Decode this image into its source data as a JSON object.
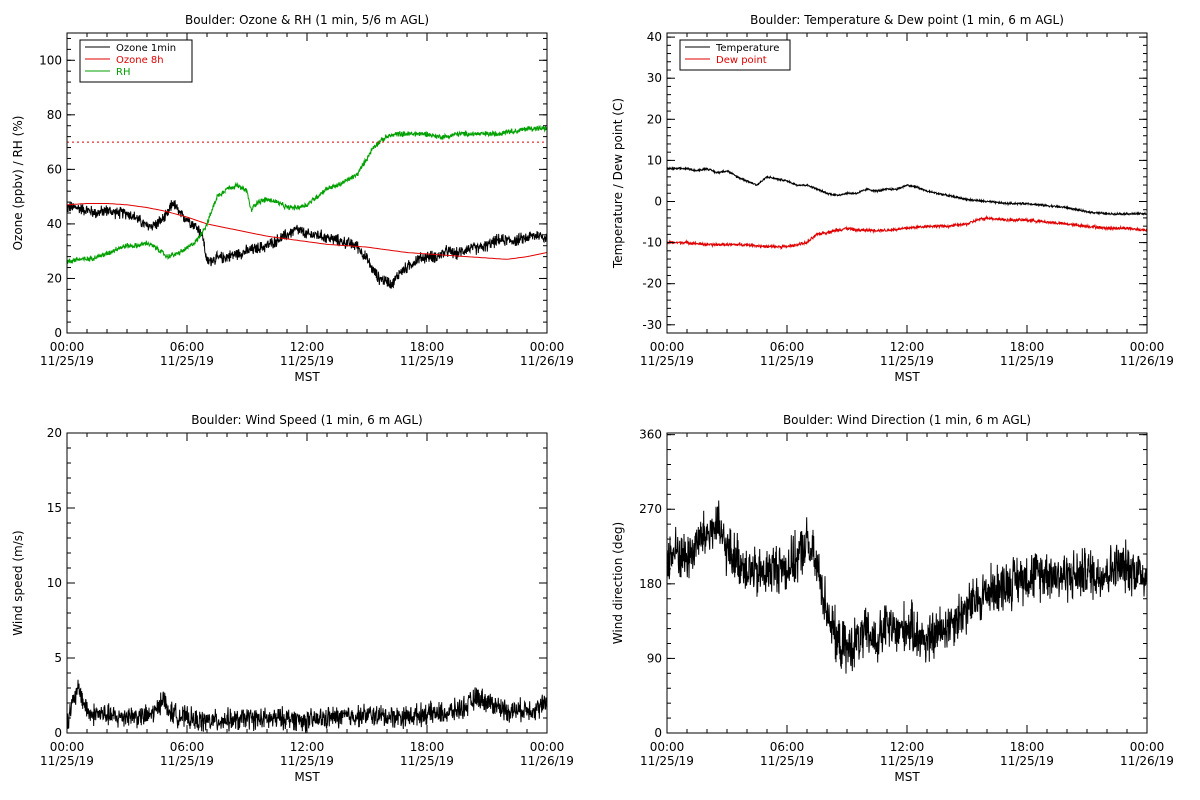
{
  "x_axis": {
    "label": "MST",
    "ticks": [
      {
        "time": "00:00",
        "date": "11/25/19"
      },
      {
        "time": "06:00",
        "date": "11/25/19"
      },
      {
        "time": "12:00",
        "date": "11/25/19"
      },
      {
        "time": "18:00",
        "date": "11/25/19"
      },
      {
        "time": "00:00",
        "date": "11/26/19"
      }
    ]
  },
  "chart_data": [
    {
      "type": "line",
      "title": "Boulder: Ozone & RH (1 min, 5/6 m AGL)",
      "xlabel": "MST",
      "ylabel": "Ozone (ppbv) / RH (%)",
      "x_range_hours": [
        0,
        24
      ],
      "ylim": [
        0,
        110
      ],
      "yticks": [
        0,
        20,
        40,
        60,
        80,
        100
      ],
      "grid": false,
      "legend": "top-left",
      "series": [
        {
          "name": "Ozone 1min",
          "color": "#000000",
          "noise": 1.8,
          "x": [
            0,
            0.5,
            1,
            1.5,
            2,
            2.5,
            3,
            3.5,
            4,
            4.5,
            5,
            5.3,
            5.7,
            6,
            6.3,
            6.6,
            6.8,
            7,
            7.3,
            8,
            9,
            10,
            10.5,
            11,
            11.5,
            12,
            12.5,
            13,
            13.5,
            14,
            14.5,
            15,
            15.3,
            15.6,
            16,
            16.3,
            16.6,
            17,
            17.5,
            18,
            18.5,
            19,
            19.5,
            20,
            20.5,
            21,
            21.5,
            22,
            22.5,
            23,
            23.5,
            24
          ],
          "y": [
            46,
            46,
            45,
            44,
            45,
            44,
            44,
            42,
            39,
            40,
            43,
            48,
            43,
            42,
            40,
            38,
            35,
            26,
            27,
            28,
            30,
            32,
            34,
            36,
            38,
            36,
            36,
            35,
            34,
            33,
            32,
            27,
            23,
            20,
            19,
            18,
            22,
            24,
            27,
            28,
            28,
            30,
            29,
            31,
            31,
            32,
            34,
            34,
            34,
            35,
            36,
            35
          ]
        },
        {
          "name": "Ozone 8h",
          "color": "#e00000",
          "noise": 0,
          "x": [
            0,
            1,
            2,
            3,
            4,
            5,
            6,
            7,
            8,
            9,
            10,
            11,
            12,
            13,
            14,
            15,
            16,
            17,
            18,
            19,
            20,
            21,
            22,
            23,
            24
          ],
          "y": [
            47,
            47.5,
            47.5,
            47,
            46,
            44.5,
            42.5,
            40,
            38.5,
            37,
            35.5,
            34.5,
            33.5,
            32.5,
            32,
            31.5,
            30.5,
            29.5,
            29,
            28.5,
            28,
            27.5,
            27,
            28,
            29.5
          ]
        },
        {
          "name": "RH",
          "color": "#00a000",
          "noise": 0.8,
          "x": [
            0,
            0.5,
            1,
            1.5,
            2,
            2.5,
            3,
            3.5,
            4,
            4.5,
            5,
            5.5,
            6,
            6.5,
            7,
            7.5,
            8,
            8.5,
            9,
            9.2,
            9.5,
            10,
            10.5,
            11,
            11.5,
            12,
            12.5,
            13,
            13.5,
            14,
            14.5,
            15,
            15.3,
            15.6,
            16,
            16.5,
            17,
            17.5,
            18,
            18.5,
            19,
            19.5,
            20,
            20.5,
            21,
            21.5,
            22,
            22.5,
            23,
            23.5,
            24
          ],
          "y": [
            26,
            27,
            27,
            28,
            29,
            31,
            32,
            32,
            33,
            31,
            28,
            29,
            31,
            34,
            40,
            50,
            53,
            54,
            52,
            45,
            48,
            49,
            48,
            46,
            46,
            47,
            50,
            53,
            54,
            56,
            58,
            64,
            68,
            70,
            72,
            73,
            73,
            73,
            73,
            72,
            72,
            73,
            73,
            73,
            73,
            73,
            74,
            74,
            75,
            75,
            75
          ]
        },
        {
          "name": "",
          "color": "#e00000",
          "style": "dotted",
          "noise": 0,
          "x": [
            0,
            24
          ],
          "y": [
            70,
            70
          ]
        }
      ]
    },
    {
      "type": "line",
      "title": "Boulder: Temperature & Dew point (1 min, 6 m AGL)",
      "xlabel": "MST",
      "ylabel": "Temperature / Dew point (C)",
      "x_range_hours": [
        0,
        24
      ],
      "ylim": [
        -32,
        41
      ],
      "yticks": [
        -30,
        -20,
        -10,
        0,
        10,
        20,
        30,
        40
      ],
      "grid": false,
      "legend": "top-left",
      "series": [
        {
          "name": "Temperature",
          "color": "#000000",
          "noise": 0.2,
          "x": [
            0,
            0.5,
            1,
            1.5,
            2,
            2.5,
            3,
            3.5,
            4,
            4.5,
            5,
            5.5,
            6,
            6.5,
            7,
            7.5,
            8,
            8.5,
            9,
            9.5,
            10,
            10.5,
            11,
            11.5,
            12,
            12.5,
            13,
            14,
            15,
            16,
            17,
            18,
            19,
            20,
            21,
            22,
            23,
            24
          ],
          "y": [
            8,
            8,
            8,
            7.5,
            8,
            7,
            7.5,
            6,
            5,
            4,
            6,
            5.5,
            5,
            4,
            4,
            3,
            2,
            1.5,
            2,
            2,
            3,
            2.5,
            3,
            3,
            4,
            3.5,
            2.5,
            1.5,
            0.5,
            0,
            -0.5,
            -0.5,
            -1,
            -1.5,
            -2.5,
            -3,
            -3,
            -3
          ]
        },
        {
          "name": "Dew point",
          "color": "#e00000",
          "noise": 0.3,
          "x": [
            0,
            1,
            2,
            3,
            4,
            5,
            6,
            6.5,
            7,
            7.5,
            8,
            8.5,
            9,
            9.5,
            10,
            11,
            12,
            13,
            14,
            15,
            15.5,
            16,
            17,
            18,
            19,
            20,
            21,
            22,
            23,
            24
          ],
          "y": [
            -10,
            -10,
            -10.5,
            -10.5,
            -10.5,
            -11,
            -11,
            -10.5,
            -10,
            -8,
            -7.5,
            -7,
            -6.5,
            -7,
            -7,
            -7,
            -6.5,
            -6,
            -6,
            -5.5,
            -4.5,
            -4,
            -4.5,
            -4.5,
            -5,
            -5.5,
            -6,
            -6.5,
            -6.5,
            -7
          ]
        }
      ]
    },
    {
      "type": "line",
      "title": "Boulder: Wind Speed (1 min, 6 m AGL)",
      "xlabel": "MST",
      "ylabel": "Wind speed (m/s)",
      "x_range_hours": [
        0,
        24
      ],
      "ylim": [
        0,
        20
      ],
      "yticks": [
        0,
        5,
        10,
        15,
        20
      ],
      "grid": false,
      "series": [
        {
          "name": "",
          "color": "#000000",
          "noise": 0.6,
          "x": [
            0,
            0.3,
            0.6,
            0.9,
            1.2,
            1.5,
            2,
            2.5,
            3,
            3.5,
            4,
            4.5,
            4.8,
            5,
            5.5,
            6,
            6.5,
            7,
            7.5,
            8,
            8.5,
            9,
            10,
            11,
            12,
            13,
            14,
            15,
            16,
            17,
            18,
            19,
            20,
            20.5,
            21,
            21.5,
            22,
            22.5,
            23,
            23.5,
            24
          ],
          "y": [
            0.8,
            2,
            3,
            1.8,
            1.2,
            1.3,
            1.2,
            1,
            1.2,
            1.1,
            1.1,
            1.5,
            2.5,
            1.5,
            1.2,
            1,
            0.8,
            0.8,
            0.8,
            0.9,
            0.8,
            1,
            0.9,
            1,
            0.8,
            1,
            1.1,
            1.2,
            1.1,
            1.1,
            1.3,
            1.3,
            1.8,
            2.4,
            2.1,
            1.8,
            1.5,
            1.5,
            1.6,
            1.6,
            2
          ]
        }
      ]
    },
    {
      "type": "line",
      "title": "Boulder: Wind Direction (1 min, 6 m AGL)",
      "xlabel": "MST",
      "ylabel": "Wind direction (deg)",
      "x_range_hours": [
        0,
        24
      ],
      "ylim": [
        0,
        362
      ],
      "yticks": [
        0,
        90,
        180,
        270,
        360
      ],
      "grid": false,
      "series": [
        {
          "name": "",
          "color": "#000000",
          "noise": 25,
          "x": [
            0,
            0.5,
            1,
            1.5,
            2,
            2.5,
            3,
            3.5,
            4,
            4.5,
            5,
            5.5,
            6,
            6.5,
            7,
            7.5,
            8,
            8.5,
            9,
            9.5,
            10,
            10.5,
            11,
            11.5,
            12,
            12.5,
            13,
            13.5,
            14,
            14.5,
            15,
            15.5,
            16,
            16.5,
            17,
            17.5,
            18,
            18.5,
            19,
            19.5,
            20,
            20.5,
            21,
            21.5,
            22,
            22.5,
            23,
            23.5,
            24
          ],
          "y": [
            210,
            220,
            210,
            230,
            240,
            250,
            220,
            210,
            200,
            190,
            195,
            200,
            200,
            210,
            230,
            200,
            150,
            110,
            100,
            110,
            120,
            110,
            130,
            120,
            130,
            120,
            110,
            120,
            130,
            140,
            150,
            160,
            170,
            175,
            180,
            185,
            190,
            190,
            195,
            190,
            190,
            190,
            195,
            190,
            195,
            200,
            200,
            195,
            190
          ]
        }
      ]
    }
  ]
}
